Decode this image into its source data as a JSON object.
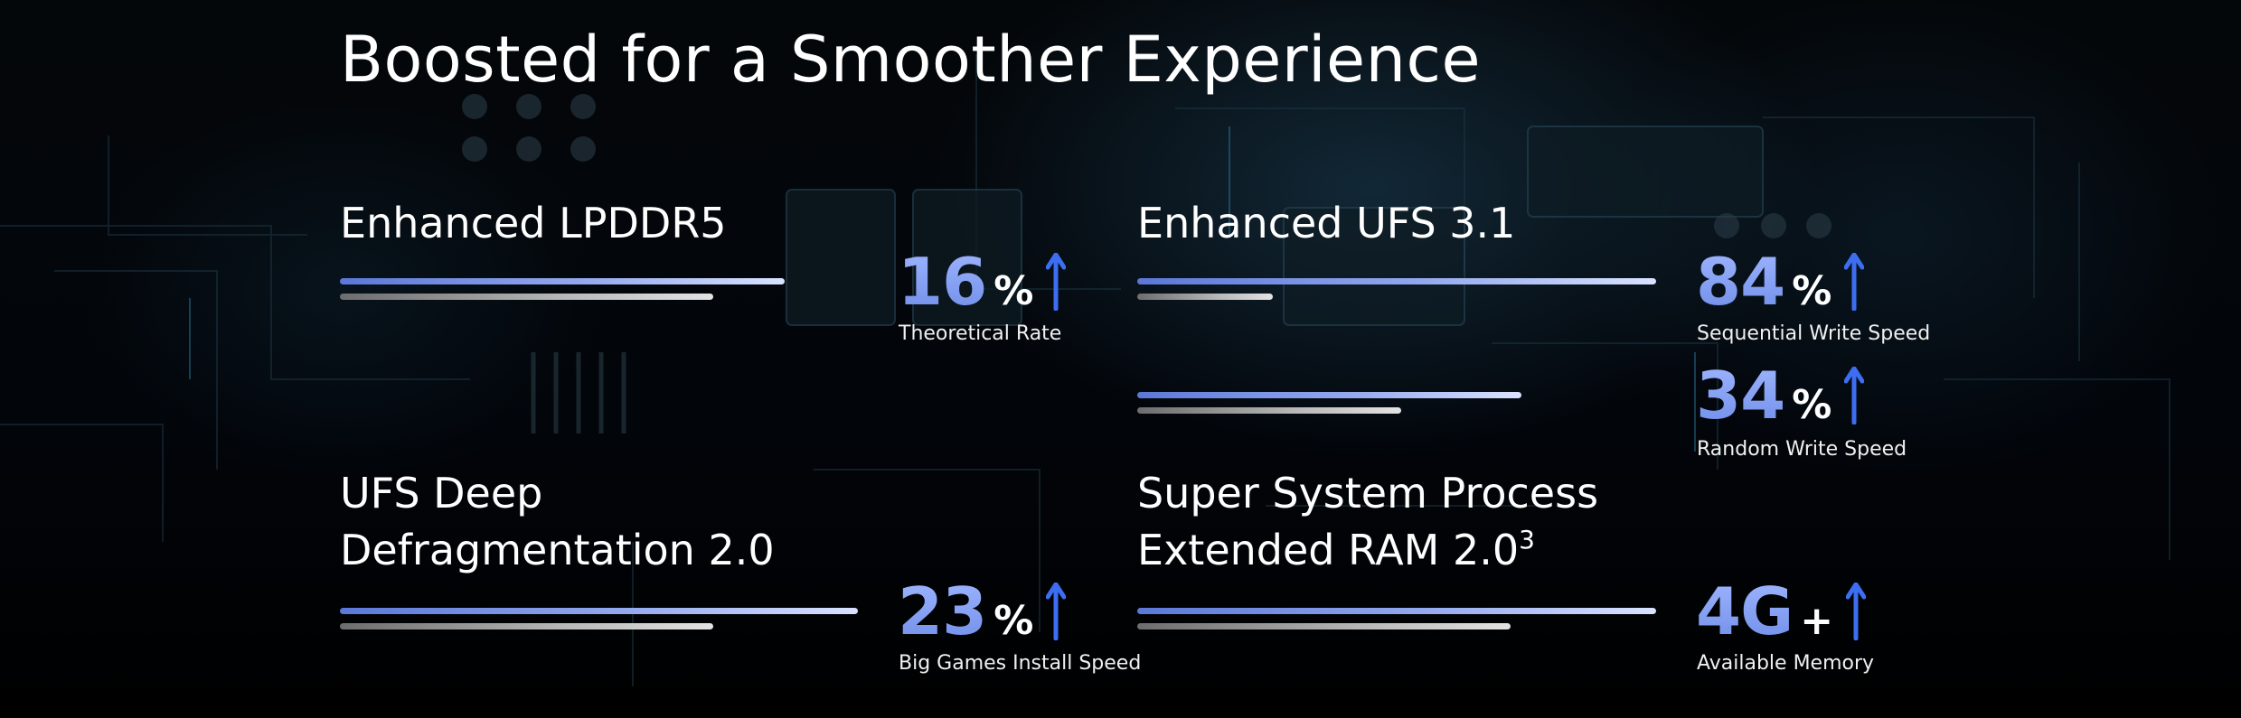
{
  "page": {
    "title": "Boosted for a Smoother Experience"
  },
  "features": {
    "lpddr5": {
      "title": "Enhanced LPDDR5",
      "stat_value": "16",
      "stat_unit": "%",
      "caption": "Theoretical Rate"
    },
    "ufs31": {
      "title": "Enhanced UFS 3.1",
      "stats": [
        {
          "value": "84",
          "unit": "%",
          "caption": "Sequential Write Speed"
        },
        {
          "value": "34",
          "unit": "%",
          "caption": "Random Write Speed"
        }
      ]
    },
    "defrag": {
      "title_line1": "UFS Deep",
      "title_line2": "Defragmentation 2.0",
      "stat_value": "23",
      "stat_unit": "%",
      "caption": "Big Games Install Speed"
    },
    "extended_ram": {
      "title_line1": "Super System Process",
      "title_line2": "Extended RAM 2.0",
      "footnote": "3",
      "stat_value": "4G",
      "stat_unit": "+",
      "caption": "Available Memory"
    }
  },
  "colors": {
    "accent_blue": "#6f8de8",
    "arrow_blue": "#3d6ef2",
    "bar_gray": "#b8b8b8",
    "background": "#000000"
  },
  "icons": {
    "increase": "arrow-up-icon"
  }
}
